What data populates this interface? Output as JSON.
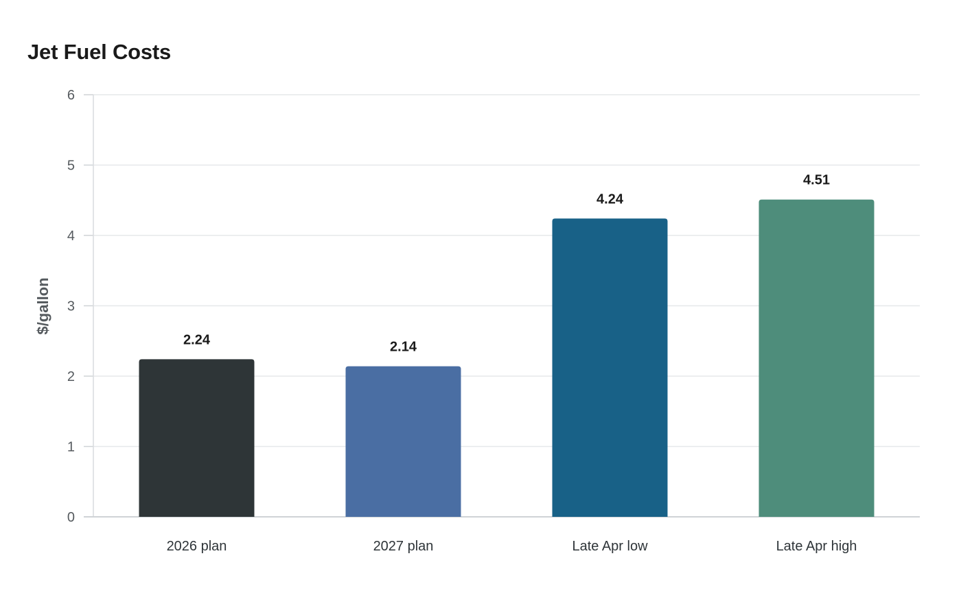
{
  "chart_data": {
    "type": "bar",
    "title": "Jet Fuel Costs",
    "xlabel": "",
    "ylabel": "$/gallon",
    "categories": [
      "2026 plan",
      "2027 plan",
      "Late Apr low",
      "Late Apr high"
    ],
    "values": [
      2.24,
      2.14,
      4.24,
      4.51
    ],
    "value_labels": [
      "2.24",
      "2.14",
      "4.24",
      "4.51"
    ],
    "colors": [
      "#2e3537",
      "#4a6ea3",
      "#186187",
      "#4e8d7b"
    ],
    "ylim": [
      0,
      6
    ],
    "yticks": [
      0,
      1,
      2,
      3,
      4,
      5,
      6
    ],
    "grid": true,
    "legend": "none"
  }
}
